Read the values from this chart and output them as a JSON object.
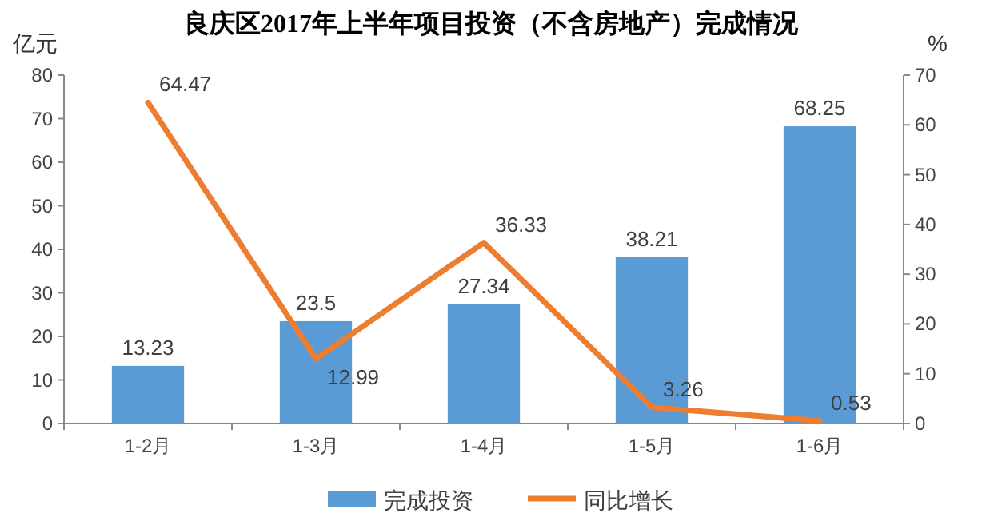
{
  "chart_data": {
    "type": "bar",
    "title": "良庆区2017年上半年项目投资（不含房地产）完成情况",
    "categories": [
      "1-2月",
      "1-3月",
      "1-4月",
      "1-5月",
      "1-6月"
    ],
    "series": [
      {
        "name": "完成投资",
        "color": "#5b9bd5",
        "values": [
          13.23,
          23.5,
          27.34,
          38.21,
          68.25
        ]
      },
      {
        "name": "同比增长",
        "type": "line",
        "axis": "y2",
        "color": "#ed7d31",
        "values": [
          64.47,
          12.99,
          36.33,
          3.26,
          0.53
        ]
      }
    ],
    "ylabel": "亿元",
    "y2label": "%",
    "ylim": [
      0,
      80
    ],
    "yticks": [
      0,
      10,
      20,
      30,
      40,
      50,
      60,
      70,
      80
    ],
    "y2lim": [
      0,
      70
    ],
    "y2ticks": [
      0,
      10,
      20,
      30,
      40,
      50,
      60,
      70
    ],
    "data_labels": true,
    "legend": "bottom",
    "marker": "none"
  }
}
